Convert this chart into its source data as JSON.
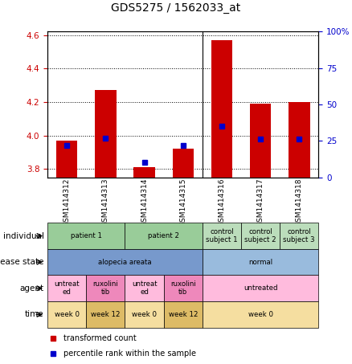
{
  "title": "GDS5275 / 1562033_at",
  "samples": [
    "GSM1414312",
    "GSM1414313",
    "GSM1414314",
    "GSM1414315",
    "GSM1414316",
    "GSM1414317",
    "GSM1414318"
  ],
  "transformed_count": [
    3.97,
    4.27,
    3.81,
    3.92,
    4.57,
    4.19,
    4.2
  ],
  "percentile_rank": [
    22,
    27,
    10,
    22,
    35,
    26,
    26
  ],
  "ylim_left": [
    3.75,
    4.62
  ],
  "ylim_right": [
    0,
    100
  ],
  "yticks_left": [
    3.8,
    4.0,
    4.2,
    4.4,
    4.6
  ],
  "yticks_right": [
    0,
    25,
    50,
    75,
    100
  ],
  "bar_color": "#cc0000",
  "dot_color": "#0000cc",
  "bar_bottom": 3.75,
  "annotation_rows": [
    {
      "label": "individual",
      "cells": [
        {
          "text": "patient 1",
          "span": 2,
          "color": "#99cc99"
        },
        {
          "text": "patient 2",
          "span": 2,
          "color": "#99cc99"
        },
        {
          "text": "control\nsubject 1",
          "span": 1,
          "color": "#bbddbb"
        },
        {
          "text": "control\nsubject 2",
          "span": 1,
          "color": "#bbddbb"
        },
        {
          "text": "control\nsubject 3",
          "span": 1,
          "color": "#bbddbb"
        }
      ]
    },
    {
      "label": "disease state",
      "cells": [
        {
          "text": "alopecia areata",
          "span": 4,
          "color": "#7799cc"
        },
        {
          "text": "normal",
          "span": 3,
          "color": "#99bbdd"
        }
      ]
    },
    {
      "label": "agent",
      "cells": [
        {
          "text": "untreat\ned",
          "span": 1,
          "color": "#ffbbdd"
        },
        {
          "text": "ruxolini\ntib",
          "span": 1,
          "color": "#ee88bb"
        },
        {
          "text": "untreat\ned",
          "span": 1,
          "color": "#ffbbdd"
        },
        {
          "text": "ruxolini\ntib",
          "span": 1,
          "color": "#ee88bb"
        },
        {
          "text": "untreated",
          "span": 3,
          "color": "#ffbbdd"
        }
      ]
    },
    {
      "label": "time",
      "cells": [
        {
          "text": "week 0",
          "span": 1,
          "color": "#f5dea0"
        },
        {
          "text": "week 12",
          "span": 1,
          "color": "#ddbb66"
        },
        {
          "text": "week 0",
          "span": 1,
          "color": "#f5dea0"
        },
        {
          "text": "week 12",
          "span": 1,
          "color": "#ddbb66"
        },
        {
          "text": "week 0",
          "span": 3,
          "color": "#f5dea0"
        }
      ]
    }
  ],
  "legend_items": [
    {
      "label": "transformed count",
      "color": "#cc0000"
    },
    {
      "label": "percentile rank within the sample",
      "color": "#0000cc"
    }
  ]
}
